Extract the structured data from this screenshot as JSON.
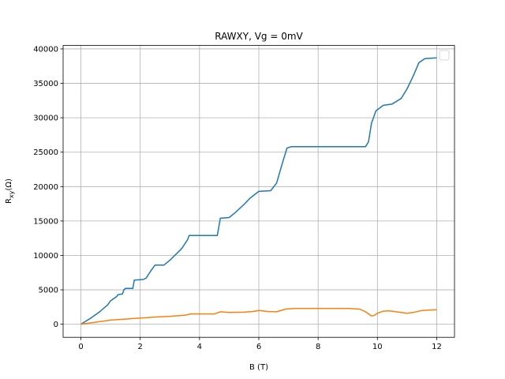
{
  "chart_data": {
    "type": "line",
    "title": "RAWXY, Vg = 0mV",
    "xlabel": "B (T)",
    "ylabel": "R_xy(Ω)",
    "xlim": [
      -0.6,
      12.6
    ],
    "ylim": [
      -1900,
      40500
    ],
    "xticks": [
      0,
      2,
      4,
      6,
      8,
      10,
      12
    ],
    "xtick_labels": [
      "0",
      "2",
      "4",
      "6",
      "8",
      "10",
      "12"
    ],
    "yticks": [
      0,
      5000,
      10000,
      15000,
      20000,
      25000,
      30000,
      35000,
      40000
    ],
    "ytick_labels": [
      "0",
      "5000",
      "10000",
      "15000",
      "20000",
      "25000",
      "30000",
      "35000",
      "40000"
    ],
    "grid": true,
    "legend": "top-right (empty)",
    "series": [
      {
        "color": "#1f77b4",
        "x": [
          0,
          0.3,
          0.6,
          0.9,
          1.0,
          1.1,
          1.2,
          1.25,
          1.4,
          1.45,
          1.5,
          1.75,
          1.8,
          2.1,
          2.2,
          2.35,
          2.5,
          2.8,
          3.0,
          3.4,
          3.6,
          3.65,
          4.6,
          4.7,
          5.0,
          5.2,
          5.5,
          5.7,
          6.0,
          6.4,
          6.6,
          6.8,
          6.95,
          7.1,
          9.6,
          9.7,
          9.8,
          9.95,
          10.2,
          10.5,
          10.8,
          11.0,
          11.2,
          11.4,
          11.6,
          12.0
        ],
        "y": [
          0,
          800,
          1700,
          2800,
          3400,
          3700,
          4000,
          4300,
          4400,
          5000,
          5200,
          5200,
          6400,
          6500,
          6700,
          7700,
          8600,
          8600,
          9300,
          11000,
          12300,
          12900,
          12900,
          15400,
          15500,
          16200,
          17400,
          18300,
          19300,
          19400,
          20500,
          23500,
          25600,
          25800,
          25800,
          26500,
          29200,
          31000,
          31800,
          32000,
          32800,
          34200,
          36000,
          38000,
          38600,
          38700
        ]
      },
      {
        "color": "#ff7f0e",
        "x": [
          0,
          0.5,
          1.0,
          1.5,
          1.8,
          2.2,
          2.5,
          3.0,
          3.5,
          3.7,
          4.5,
          4.7,
          5.0,
          5.5,
          5.8,
          6.0,
          6.3,
          6.6,
          6.9,
          7.2,
          8.0,
          9.0,
          9.4,
          9.6,
          9.8,
          9.9,
          10.0,
          10.2,
          10.4,
          10.8,
          11.0,
          11.2,
          11.5,
          11.7,
          12.0
        ],
        "y": [
          0,
          300,
          600,
          750,
          850,
          950,
          1050,
          1150,
          1300,
          1500,
          1500,
          1800,
          1700,
          1750,
          1850,
          2000,
          1850,
          1800,
          2200,
          2300,
          2300,
          2300,
          2200,
          1800,
          1200,
          1300,
          1600,
          1900,
          1950,
          1700,
          1600,
          1700,
          2000,
          2050,
          2100
        ]
      }
    ]
  }
}
